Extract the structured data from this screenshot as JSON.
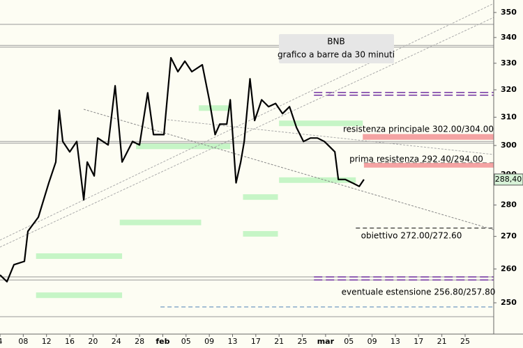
{
  "chart_data": {
    "type": "line",
    "title": "BNB",
    "subtitle": "grafico a barre da 30 minuti",
    "log_scale": true,
    "ylim": [
      241.1,
      355.1
    ],
    "yticks": [
      250,
      260,
      270,
      280,
      290,
      300,
      310,
      320,
      330,
      340,
      350
    ],
    "xlim": [
      0,
      21.23
    ],
    "xticks": [
      {
        "value": 0,
        "label": "4"
      },
      {
        "value": 1,
        "label": "08"
      },
      {
        "value": 2,
        "label": "12"
      },
      {
        "value": 3,
        "label": "16"
      },
      {
        "value": 4,
        "label": "20"
      },
      {
        "value": 5,
        "label": "24"
      },
      {
        "value": 6,
        "label": "28"
      },
      {
        "value": 7,
        "label": "feb"
      },
      {
        "value": 8,
        "label": "05"
      },
      {
        "value": 9,
        "label": "09"
      },
      {
        "value": 10,
        "label": "13"
      },
      {
        "value": 11,
        "label": "17"
      },
      {
        "value": 12,
        "label": "21"
      },
      {
        "value": 13,
        "label": "25"
      },
      {
        "value": 14,
        "label": "mar"
      },
      {
        "value": 15,
        "label": "05"
      },
      {
        "value": 16,
        "label": "09"
      },
      {
        "value": 17,
        "label": "13"
      },
      {
        "value": 18,
        "label": "17"
      },
      {
        "value": 19,
        "label": "21"
      },
      {
        "value": 20,
        "label": "25"
      }
    ],
    "series": [
      {
        "color": "#000000",
        "x": [
          0,
          0.3,
          0.6,
          1.05,
          1.2,
          1.65,
          2.1,
          2.4,
          2.55,
          2.7,
          3.0,
          3.3,
          3.6,
          3.75,
          4.05,
          4.2,
          4.65,
          4.95,
          5.25,
          5.7,
          6.0,
          6.35,
          6.6,
          7.05,
          7.35,
          7.65,
          7.95,
          8.25,
          8.7,
          9.0,
          9.25,
          9.45,
          9.75,
          9.9,
          10.15,
          10.35,
          10.5,
          10.75,
          10.95,
          11.25,
          11.55,
          11.85,
          12.15,
          12.45,
          12.75,
          13.05,
          13.35,
          13.65,
          13.95,
          14.25,
          14.4,
          14.55,
          14.85,
          15.15,
          15.45,
          15.65
        ],
        "values": [
          258.2,
          256.2,
          261.3,
          262.3,
          271.6,
          276.1,
          287.3,
          294.3,
          312.5,
          301.4,
          297.8,
          301.4,
          281.7,
          294.3,
          289.6,
          302.6,
          300.2,
          321.5,
          294.3,
          301.4,
          300.2,
          318.9,
          303.8,
          303.8,
          332.1,
          326.8,
          330.8,
          326.8,
          329.4,
          316.3,
          303.8,
          307.5,
          307.5,
          316.3,
          287.3,
          294.3,
          301.4,
          324.1,
          308.8,
          316.3,
          313.8,
          315.0,
          311.3,
          313.8,
          306.3,
          301.4,
          302.6,
          302.6,
          301.4,
          299.0,
          297.8,
          288.4,
          288.4,
          287.3,
          286.1,
          288.4
        ]
      }
    ],
    "last_price": {
      "value": 288.4,
      "label": "288,40"
    },
    "zones_color": "#c6f5c6",
    "zones": [
      {
        "value": 313.3,
        "from": 8.55,
        "to": 9.9
      },
      {
        "value": 299.7,
        "from": 5.85,
        "to": 9.9
      },
      {
        "value": 307.8,
        "from": 12.0,
        "to": 15.6
      },
      {
        "value": 288.2,
        "from": 12.0,
        "to": 15.3
      },
      {
        "value": 282.6,
        "from": 10.45,
        "to": 11.95
      },
      {
        "value": 274.4,
        "from": 5.15,
        "to": 8.65
      },
      {
        "value": 270.8,
        "from": 10.45,
        "to": 11.95
      },
      {
        "value": 263.9,
        "from": 1.55,
        "to": 5.25
      },
      {
        "value": 252.2,
        "from": 1.55,
        "to": 5.25
      }
    ],
    "bands_color": "#f4a3a3",
    "bands": [
      {
        "low": 302,
        "high": 304,
        "from": 15.6
      },
      {
        "low": 292.4,
        "high": 294,
        "from": 15.65
      }
    ],
    "levels": [
      {
        "value": 345.2,
        "from": 0,
        "color": "#999999",
        "dash": false
      },
      {
        "value": 336.9,
        "from": 0,
        "color": "#999999",
        "dash": false
      },
      {
        "value": 336.2,
        "from": 0,
        "color": "#999999",
        "dash": false
      },
      {
        "value": 301.4,
        "from": 0,
        "color": "#999999",
        "dash": false
      },
      {
        "value": 300.8,
        "from": 0,
        "color": "#999999",
        "dash": false
      },
      {
        "value": 257.6,
        "from": 0,
        "color": "#999999",
        "dash": false
      },
      {
        "value": 256.7,
        "from": 0,
        "color": "#999999",
        "dash": false
      },
      {
        "value": 246.0,
        "from": 0,
        "color": "#999999",
        "dash": false
      },
      {
        "value": 319.0,
        "from": 13.5,
        "color": "#7030a0",
        "dash": true
      },
      {
        "value": 318.0,
        "from": 13.5,
        "color": "#7030a0",
        "dash": true
      },
      {
        "value": 257.6,
        "from": 13.5,
        "color": "#7030a0",
        "dash": true
      },
      {
        "value": 256.7,
        "from": 13.5,
        "color": "#7030a0",
        "dash": true
      },
      {
        "value": 294.0,
        "from": 15.65,
        "color": "#000000",
        "dash": true
      },
      {
        "value": 272.6,
        "from": 15.3,
        "color": "#000000",
        "dash": true
      },
      {
        "value": 248.8,
        "from": 6.9,
        "color": "#4a7fb5",
        "dash": true
      }
    ],
    "annotations": [
      "resistenza principale 302.00/304.00",
      "prima resistenza 292.40/294.00",
      "obiettivo 272.00/272.60",
      "eventuale estensione 256.80/257.80"
    ]
  }
}
